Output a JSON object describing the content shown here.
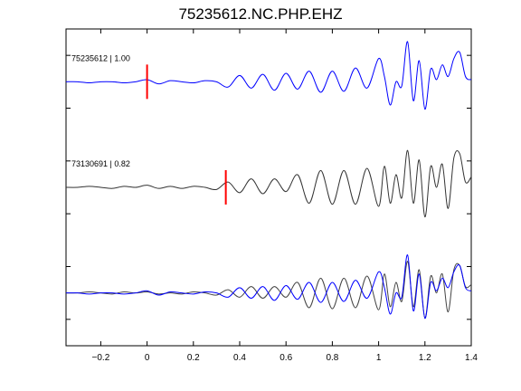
{
  "chart_data": {
    "type": "line",
    "title": "75235612.NC.PHP.EHZ",
    "xlabel": "",
    "ylabel": "",
    "xlim": [
      -0.35,
      1.4
    ],
    "ylim": [
      0,
      3
    ],
    "x_ticks": [
      -0.2,
      0,
      0.2,
      0.4,
      0.6,
      0.8,
      1,
      1.2,
      1.4
    ],
    "x_tick_labels": [
      "−0.2",
      "0",
      "0.2",
      "0.4",
      "0.6",
      "0.8",
      "1",
      "1.2",
      "1.4"
    ],
    "y_ticks": [
      0.25,
      0.75,
      1.25,
      1.75,
      2.25,
      2.75
    ],
    "grid": false,
    "series": [
      {
        "name": "75235612 | 1.00",
        "role": "top",
        "color": "#0000ff",
        "baseline": 2.5,
        "pick_x": 0.0,
        "pick_color": "#ff0000",
        "x": [
          -0.35,
          -0.3,
          -0.25,
          -0.2,
          -0.15,
          -0.1,
          -0.05,
          0.0,
          0.05,
          0.1,
          0.15,
          0.2,
          0.25,
          0.3,
          0.35,
          0.4,
          0.45,
          0.5,
          0.55,
          0.6,
          0.65,
          0.7,
          0.75,
          0.8,
          0.85,
          0.9,
          0.95,
          1.0,
          1.025,
          1.05,
          1.075,
          1.1,
          1.125,
          1.15,
          1.175,
          1.2,
          1.225,
          1.25,
          1.275,
          1.3,
          1.325,
          1.35,
          1.375,
          1.4
        ],
        "y": [
          2.5,
          2.5,
          2.49,
          2.5,
          2.5,
          2.49,
          2.5,
          2.52,
          2.48,
          2.51,
          2.5,
          2.49,
          2.51,
          2.5,
          2.45,
          2.56,
          2.44,
          2.57,
          2.42,
          2.58,
          2.43,
          2.6,
          2.4,
          2.6,
          2.41,
          2.63,
          2.44,
          2.72,
          2.55,
          2.28,
          2.5,
          2.46,
          2.88,
          2.32,
          2.7,
          2.24,
          2.62,
          2.52,
          2.66,
          2.55,
          2.72,
          2.78,
          2.55,
          2.52
        ]
      },
      {
        "name": "73130691 | 0.82",
        "role": "middle",
        "color": "#333333",
        "baseline": 1.5,
        "pick_x": 0.34,
        "pick_color": "#ff0000",
        "x": [
          -0.35,
          -0.3,
          -0.25,
          -0.2,
          -0.15,
          -0.1,
          -0.05,
          0.0,
          0.05,
          0.1,
          0.15,
          0.2,
          0.25,
          0.3,
          0.35,
          0.4,
          0.45,
          0.5,
          0.55,
          0.6,
          0.65,
          0.7,
          0.75,
          0.8,
          0.85,
          0.9,
          0.95,
          1.0,
          1.025,
          1.05,
          1.075,
          1.1,
          1.125,
          1.15,
          1.175,
          1.2,
          1.225,
          1.25,
          1.275,
          1.3,
          1.325,
          1.35,
          1.375,
          1.4
        ],
        "y": [
          1.5,
          1.5,
          1.51,
          1.5,
          1.49,
          1.51,
          1.5,
          1.52,
          1.49,
          1.51,
          1.49,
          1.51,
          1.5,
          1.48,
          1.55,
          1.45,
          1.58,
          1.44,
          1.58,
          1.46,
          1.62,
          1.35,
          1.66,
          1.34,
          1.66,
          1.34,
          1.68,
          1.32,
          1.7,
          1.35,
          1.62,
          1.4,
          1.85,
          1.35,
          1.76,
          1.22,
          1.7,
          1.5,
          1.72,
          1.3,
          1.78,
          1.82,
          1.55,
          1.6
        ]
      },
      {
        "name": "",
        "role": "overlay-black",
        "color": "#444444",
        "baseline": 0.5,
        "x": [
          -0.35,
          -0.3,
          -0.25,
          -0.2,
          -0.15,
          -0.1,
          -0.05,
          0.0,
          0.05,
          0.1,
          0.15,
          0.2,
          0.25,
          0.3,
          0.35,
          0.4,
          0.45,
          0.5,
          0.55,
          0.6,
          0.65,
          0.7,
          0.75,
          0.8,
          0.85,
          0.9,
          0.95,
          1.0,
          1.025,
          1.05,
          1.075,
          1.1,
          1.125,
          1.15,
          1.175,
          1.2,
          1.225,
          1.25,
          1.275,
          1.3,
          1.325,
          1.35,
          1.375,
          1.4
        ],
        "y": [
          0.5,
          0.5,
          0.51,
          0.5,
          0.49,
          0.51,
          0.5,
          0.51,
          0.49,
          0.5,
          0.49,
          0.51,
          0.5,
          0.48,
          0.53,
          0.46,
          0.56,
          0.45,
          0.56,
          0.46,
          0.6,
          0.36,
          0.64,
          0.35,
          0.64,
          0.36,
          0.66,
          0.34,
          0.68,
          0.37,
          0.6,
          0.42,
          0.8,
          0.37,
          0.72,
          0.26,
          0.66,
          0.5,
          0.68,
          0.32,
          0.72,
          0.76,
          0.56,
          0.58
        ]
      },
      {
        "name": "",
        "role": "overlay-blue",
        "color": "#0000ff",
        "baseline": 0.5,
        "x": [
          -0.35,
          -0.3,
          -0.25,
          -0.2,
          -0.15,
          -0.1,
          -0.05,
          0.0,
          0.05,
          0.1,
          0.15,
          0.2,
          0.25,
          0.3,
          0.35,
          0.4,
          0.45,
          0.5,
          0.55,
          0.6,
          0.65,
          0.7,
          0.75,
          0.8,
          0.85,
          0.9,
          0.95,
          1.0,
          1.025,
          1.05,
          1.075,
          1.1,
          1.125,
          1.15,
          1.175,
          1.2,
          1.225,
          1.25,
          1.275,
          1.3,
          1.325,
          1.35,
          1.375,
          1.4
        ],
        "y": [
          0.5,
          0.5,
          0.49,
          0.5,
          0.5,
          0.49,
          0.5,
          0.52,
          0.48,
          0.51,
          0.5,
          0.49,
          0.51,
          0.5,
          0.46,
          0.55,
          0.45,
          0.56,
          0.43,
          0.57,
          0.44,
          0.6,
          0.41,
          0.6,
          0.42,
          0.62,
          0.45,
          0.7,
          0.55,
          0.3,
          0.5,
          0.46,
          0.86,
          0.33,
          0.68,
          0.26,
          0.6,
          0.52,
          0.64,
          0.55,
          0.7,
          0.76,
          0.55,
          0.52
        ]
      }
    ]
  }
}
